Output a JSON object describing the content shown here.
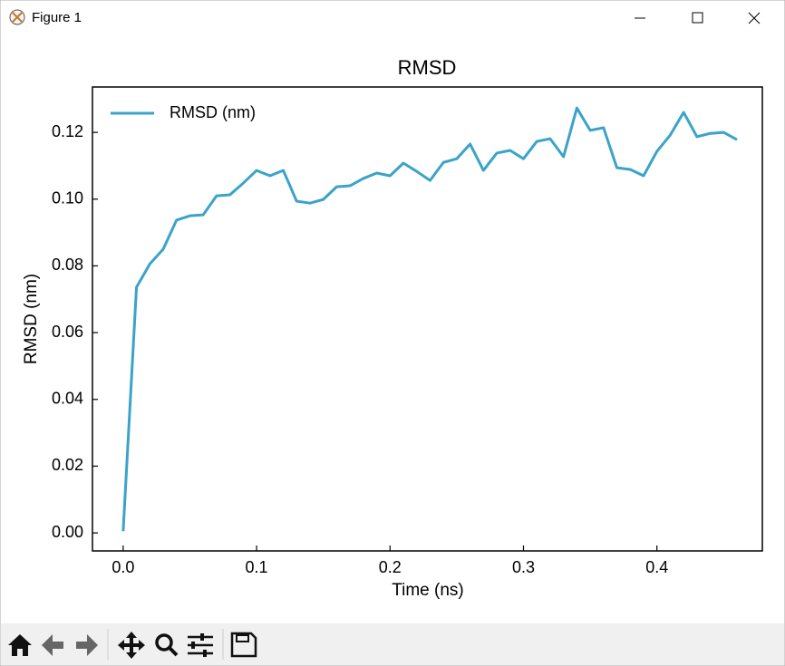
{
  "window": {
    "title": "Figure 1"
  },
  "chart_data": {
    "type": "line",
    "title": "RMSD",
    "x_label": "Time (ns)",
    "y_label": "RMSD (nm)",
    "x": [
      0,
      0.01,
      0.02,
      0.03,
      0.04,
      0.05,
      0.06,
      0.07,
      0.08,
      0.09,
      0.1,
      0.11,
      0.12,
      0.13,
      0.14,
      0.15,
      0.16,
      0.17,
      0.18,
      0.19,
      0.2,
      0.21,
      0.22,
      0.23,
      0.24,
      0.25,
      0.26,
      0.27,
      0.28,
      0.29,
      0.3,
      0.31,
      0.32,
      0.33,
      0.34,
      0.35,
      0.36,
      0.37,
      0.38,
      0.39,
      0.4,
      0.41,
      0.42,
      0.43,
      0.44,
      0.45,
      0.46
    ],
    "series": [
      {
        "name": "RMSD (nm)",
        "color": "#3ba3c9",
        "values": [
          0.0005,
          0.0736,
          0.0806,
          0.085,
          0.0937,
          0.095,
          0.0953,
          0.101,
          0.1013,
          0.1048,
          0.1086,
          0.107,
          0.1086,
          0.0994,
          0.0988,
          0.0999,
          0.1037,
          0.104,
          0.1062,
          0.1078,
          0.107,
          0.1108,
          0.1083,
          0.1056,
          0.111,
          0.1121,
          0.1165,
          0.1086,
          0.1138,
          0.1146,
          0.1121,
          0.1173,
          0.1181,
          0.1127,
          0.1273,
          0.1206,
          0.1214,
          0.1094,
          0.1089,
          0.107,
          0.1143,
          0.1192,
          0.126,
          0.1187,
          0.1197,
          0.12,
          0.1178
        ]
      }
    ],
    "xlim": [
      -0.023,
      0.479
    ],
    "ylim": [
      -0.0054,
      0.1336
    ],
    "xticks": [
      {
        "value": 0,
        "label": "0.0"
      },
      0.1,
      0.2,
      0.3,
      0.4
    ],
    "yticks": [
      {
        "value": 0,
        "label": "0.00"
      },
      0.02,
      0.04,
      0.06,
      0.08,
      {
        "value": 0.1,
        "label": "0.10"
      },
      0.12
    ],
    "legend": "upper left",
    "grid": false
  }
}
